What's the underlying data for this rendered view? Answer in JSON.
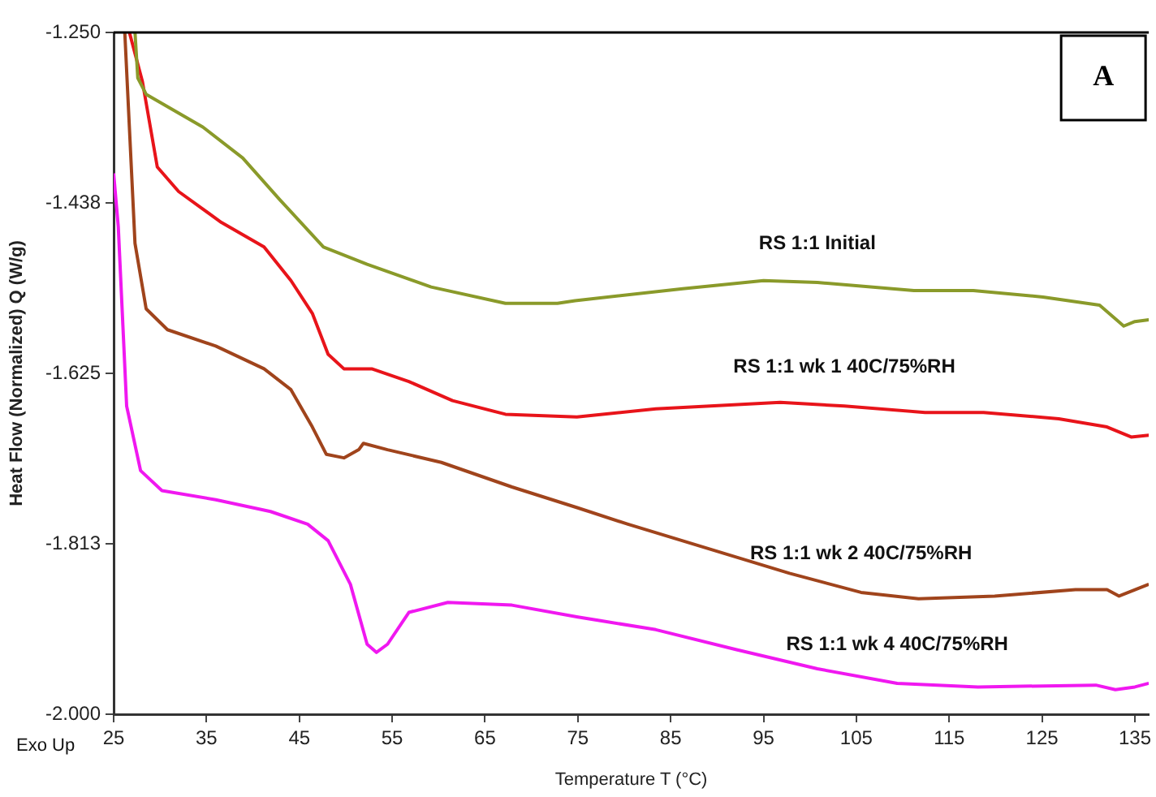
{
  "chart_data": {
    "type": "line",
    "xlabel": "Temperature T (°C)",
    "ylabel": "Heat Flow (Normalized) Q (W/g)",
    "xlim": [
      25,
      136.5
    ],
    "xticks": [
      25,
      35,
      45,
      55,
      65,
      75,
      85,
      95,
      105,
      115,
      125,
      135
    ],
    "ylim": [
      -2.0,
      -1.25
    ],
    "yticks": [
      {
        "value": -2.0,
        "label": "-2.000"
      },
      {
        "value": -1.8125,
        "label": "-1.813"
      },
      {
        "value": -1.625,
        "label": "-1.625"
      },
      {
        "value": -1.4375,
        "label": "-1.438"
      },
      {
        "value": -1.25,
        "label": "-1.250"
      }
    ],
    "grid": false,
    "legend": false,
    "marker": "none",
    "line_style": "solid",
    "annotations": [
      "A",
      "Exo Up"
    ],
    "series": [
      {
        "name": "RS 1:1 Initial",
        "color": "#8a9a2a",
        "x": [
          27.3,
          27.6,
          28.5,
          34.6,
          38.9,
          42.9,
          47.6,
          52.3,
          59.2,
          67.2,
          72.8,
          74.7,
          86.3,
          95,
          100.8,
          111.2,
          117.6,
          125.1,
          131.2,
          133.8,
          135,
          136.5
        ],
        "values": [
          -1.25,
          -1.3,
          -1.318,
          -1.354,
          -1.388,
          -1.434,
          -1.486,
          -1.505,
          -1.53,
          -1.548,
          -1.548,
          -1.545,
          -1.532,
          -1.523,
          -1.525,
          -1.534,
          -1.534,
          -1.541,
          -1.55,
          -1.573,
          -1.568,
          -1.566
        ]
      },
      {
        "name": "RS 1:1 wk 1 40C/75%RH",
        "color": "#e8141a",
        "x": [
          26.7,
          28.1,
          29.7,
          32,
          36.6,
          41.2,
          44.1,
          46.4,
          48.1,
          49.8,
          52.8,
          56.8,
          61.5,
          67.2,
          74.9,
          83.4,
          96.8,
          103.7,
          112.4,
          118.7,
          126.8,
          132,
          134.6,
          136.5
        ],
        "values": [
          -1.25,
          -1.304,
          -1.398,
          -1.425,
          -1.459,
          -1.486,
          -1.523,
          -1.559,
          -1.604,
          -1.62,
          -1.62,
          -1.634,
          -1.655,
          -1.67,
          -1.673,
          -1.664,
          -1.657,
          -1.661,
          -1.668,
          -1.668,
          -1.675,
          -1.684,
          -1.695,
          -1.693
        ]
      },
      {
        "name": "RS 1:1 wk 2 40C/75%RH",
        "color": "#a0441c",
        "x": [
          26.2,
          27.3,
          28.5,
          30.8,
          36,
          41.2,
          44.1,
          46.4,
          47.9,
          49.8,
          51.4,
          51.9,
          54.5,
          60.3,
          67.9,
          75,
          80.4,
          89.1,
          97.8,
          105.5,
          111.7,
          119.9,
          128.6,
          132,
          133.3,
          136.5
        ],
        "values": [
          -1.25,
          -1.482,
          -1.554,
          -1.577,
          -1.595,
          -1.62,
          -1.643,
          -1.684,
          -1.714,
          -1.718,
          -1.709,
          -1.702,
          -1.709,
          -1.723,
          -1.75,
          -1.773,
          -1.791,
          -1.818,
          -1.845,
          -1.866,
          -1.873,
          -1.87,
          -1.863,
          -1.863,
          -1.87,
          -1.857
        ]
      },
      {
        "name": "RS 1:1 wk 4 40C/75%RH",
        "color": "#f018f0",
        "x": [
          25,
          25.5,
          26.4,
          27.9,
          30.2,
          36,
          41.9,
          45.9,
          48.1,
          50.5,
          52.3,
          53.3,
          54.5,
          56.8,
          61,
          67.9,
          75,
          83.4,
          92.1,
          100.8,
          109.4,
          118.1,
          130.8,
          132.9,
          135,
          136.5
        ],
        "values": [
          -1.405,
          -1.464,
          -1.661,
          -1.732,
          -1.754,
          -1.764,
          -1.777,
          -1.791,
          -1.809,
          -1.857,
          -1.923,
          -1.932,
          -1.923,
          -1.888,
          -1.877,
          -1.88,
          -1.893,
          -1.907,
          -1.929,
          -1.95,
          -1.966,
          -1.97,
          -1.968,
          -1.973,
          -1.97,
          -1.966
        ]
      }
    ]
  }
}
